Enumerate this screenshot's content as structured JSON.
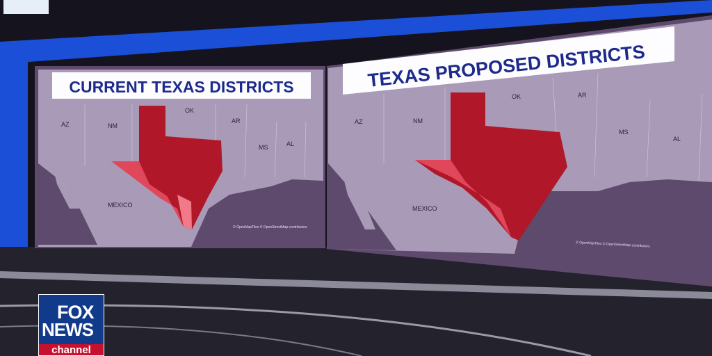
{
  "left_screen": {
    "title": "CURRENT TEXAS DISTRICTS",
    "labels": {
      "az": "AZ",
      "nm": "NM",
      "ok": "OK",
      "ar": "AR",
      "ms": "MS",
      "al": "AL",
      "mexico": "MEXICO"
    },
    "credit": "© OpenMapTiles © OpenStreetMap contributors"
  },
  "right_screen": {
    "title": "TEXAS PROPOSED DISTRICTS",
    "labels": {
      "az": "AZ",
      "nm": "NM",
      "ok": "OK",
      "ar": "AR",
      "ms": "MS",
      "al": "AL",
      "mexico": "MEXICO"
    },
    "credit": "© OpenMapTiles © OpenStreetMap contributors"
  },
  "logo": {
    "line1": "FOX",
    "line2": "NEWS",
    "line3": "channel"
  },
  "colors": {
    "land": "#a99bb8",
    "water": "#5d4a6c",
    "district_red": "#b0182a",
    "district_light": "#e0475a",
    "title_blue": "#1d2a8c",
    "studio_blue": "#1b4fd8"
  }
}
